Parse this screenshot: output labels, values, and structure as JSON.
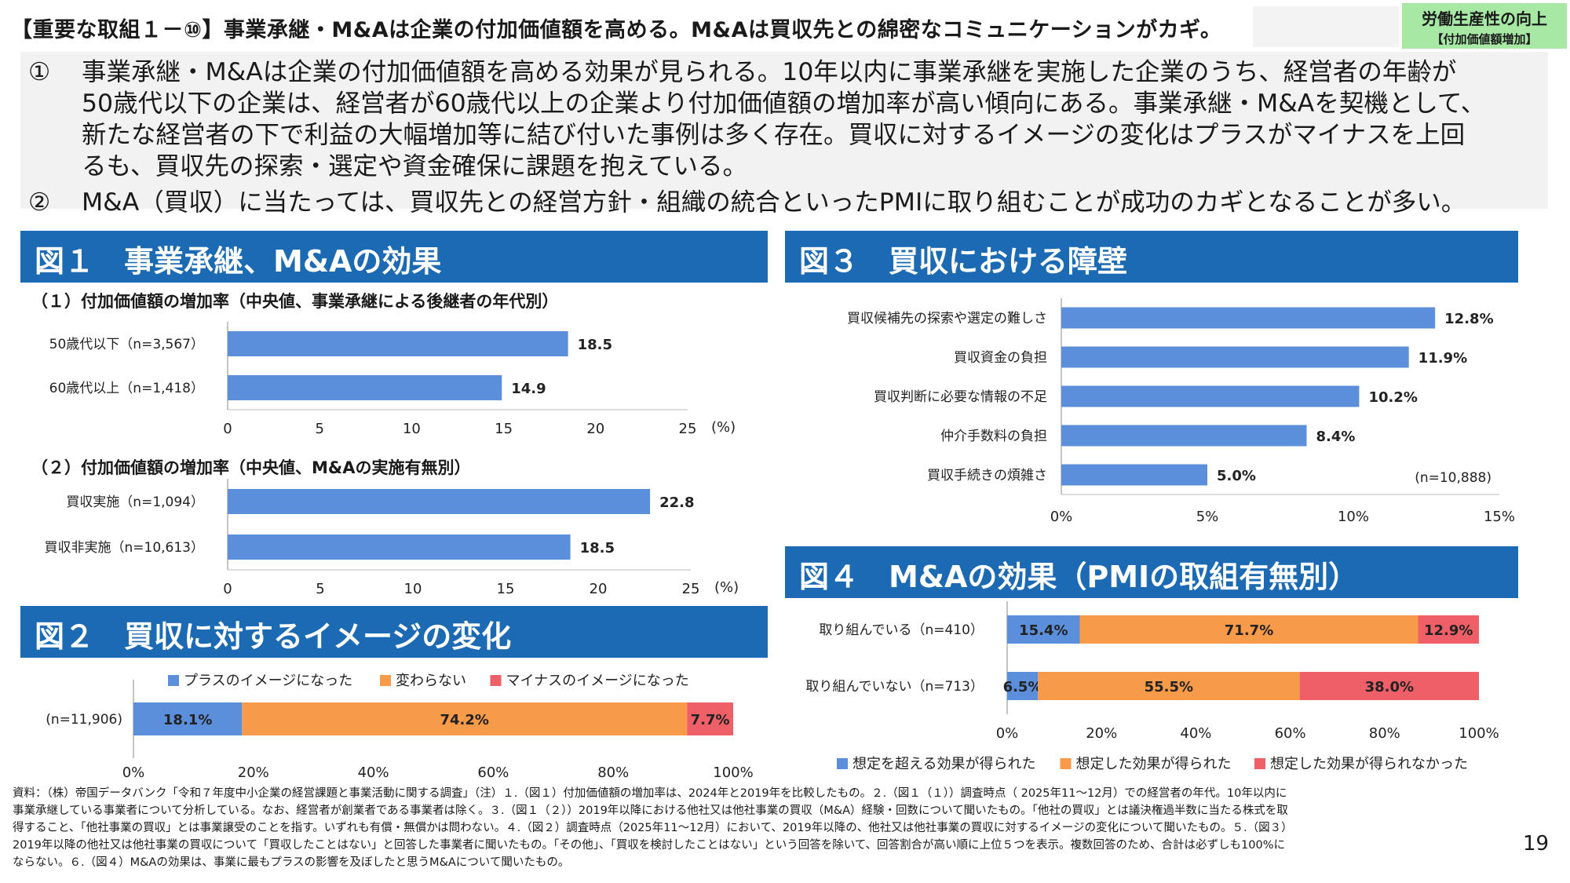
{
  "header": {
    "title": "【重要な取組１－⑩】事業承継・M&Aは企業の付加価値額を高める。M&Aは買収先との綿密なコミュニケーションがカギ。",
    "badge_line1": "労働生産性の向上",
    "badge_line2": "【付加価値額増加】"
  },
  "summary": {
    "item1_num": "①",
    "item1_lines": [
      "事業承継・M&Aは企業の付加価値額を高める効果が見られる。10年以内に事業承継を実施した企業のうち、経営者の年齢が",
      "50歳代以下の企業は、経営者が60歳代以上の企業より付加価値額の増加率が高い傾向にある。事業承継・M&Aを契機として、",
      "新たな経営者の下で利益の大幅増加等に結び付いた事例は多く存在。買収に対するイメージの変化はプラスがマイナスを上回",
      "るも、買収先の探索・選定や資金確保に課題を抱えている。"
    ],
    "item2_num": "②",
    "item2_text": "M&A（買収）に当たっては、買収先との経営方針・組織の統合といったPMIに取り組むことが成功のカギとなることが多い。"
  },
  "figures": {
    "fig1_title": "図１　事業承継、M&Aの効果",
    "fig2_title": "図２　買収に対するイメージの変化",
    "fig3_title": "図３　買収における障壁",
    "fig4_title": "図４　M&Aの効果（PMIの取組有無別）",
    "fig1_sub1": "（１）付加価値額の増加率（中央値、事業承継による後継者の年代別）",
    "fig1_sub2": "（２）付加価値額の増加率（中央値、M&Aの実施有無別）"
  },
  "chart_data": [
    {
      "id": "fig1-1",
      "type": "bar",
      "orientation": "horizontal",
      "categories": [
        "50歳代以下（n=3,567）",
        "60歳代以上（n=1,418）"
      ],
      "values": [
        18.5,
        14.9
      ],
      "value_labels": [
        "18.5",
        "14.9"
      ],
      "xlim": [
        0,
        25
      ],
      "ticks": [
        0,
        5,
        10,
        15,
        20,
        25
      ],
      "unit_label": "(%)",
      "color": "#5b8fdb"
    },
    {
      "id": "fig1-2",
      "type": "bar",
      "orientation": "horizontal",
      "categories": [
        "買収実施（n=1,094）",
        "買収非実施（n=10,613）"
      ],
      "values": [
        22.8,
        18.5
      ],
      "value_labels": [
        "22.8",
        "18.5"
      ],
      "xlim": [
        0,
        25
      ],
      "ticks": [
        0,
        5,
        10,
        15,
        20,
        25
      ],
      "unit_label": "(%)",
      "color": "#5b8fdb"
    },
    {
      "id": "fig2",
      "type": "bar",
      "orientation": "horizontal",
      "stacked": true,
      "categories": [
        "(n=11,906)"
      ],
      "series": [
        {
          "name": "プラスのイメージになった",
          "values": [
            18.1
          ],
          "label": "18.1%",
          "color": "#5b8fdb"
        },
        {
          "name": "変わらない",
          "values": [
            74.2
          ],
          "label": "74.2%",
          "color": "#f79a4a"
        },
        {
          "name": "マイナスのイメージになった",
          "values": [
            7.7
          ],
          "label": "7.7%",
          "color": "#ef5f67"
        }
      ],
      "xlim": [
        0,
        100
      ],
      "tick_labels": [
        "0%",
        "20%",
        "40%",
        "60%",
        "80%",
        "100%"
      ],
      "legend": "top"
    },
    {
      "id": "fig3",
      "type": "bar",
      "orientation": "horizontal",
      "categories": [
        "買収候補先の探索や選定の難しさ",
        "買収資金の負担",
        "買収判断に必要な情報の不足",
        "仲介手数料の負担",
        "買収手続きの煩雑さ"
      ],
      "values": [
        12.8,
        11.9,
        10.2,
        8.4,
        5.0
      ],
      "value_labels": [
        "12.8%",
        "11.9%",
        "10.2%",
        "8.4%",
        "5.0%"
      ],
      "xlim": [
        0,
        15
      ],
      "tick_labels": [
        "0%",
        "5%",
        "10%",
        "15%"
      ],
      "annotation": "(n=10,888)",
      "color": "#5b8fdb"
    },
    {
      "id": "fig4",
      "type": "bar",
      "orientation": "horizontal",
      "stacked": true,
      "categories": [
        "取り組んでいる（n=410）",
        "取り組んでいない（n=713）"
      ],
      "series": [
        {
          "name": "想定を超える効果が得られた",
          "values": [
            15.4,
            6.5
          ],
          "labels": [
            "15.4%",
            "6.5%"
          ],
          "color": "#5b8fdb"
        },
        {
          "name": "想定した効果が得られた",
          "values": [
            71.7,
            55.5
          ],
          "labels": [
            "71.7%",
            "55.5%"
          ],
          "color": "#f79a4a"
        },
        {
          "name": "想定した効果が得られなかった",
          "values": [
            12.9,
            38.0
          ],
          "labels": [
            "12.9%",
            "38.0%"
          ],
          "color": "#ef5f67"
        }
      ],
      "xlim": [
        0,
        100
      ],
      "tick_labels": [
        "0%",
        "20%",
        "40%",
        "60%",
        "80%",
        "100%"
      ],
      "legend": "bottom"
    }
  ],
  "footnote": {
    "lines": [
      "資料：（株）帝国データバンク「令和７年度中小企業の経営課題と事業活動に関する調査」（注）１.（図１）付加価値額の増加率は、2024年と2019年を比較したもの。２.（図１（１））調査時点（ 2025年11～12月）での経営者の年代。10年以内に",
      "事業承継している事業者について分析している。なお、経営者が創業者である事業者は除く。３.（図１（２））2019年以降における他社又は他社事業の買収（M&A）経験・回数について聞いたもの。「他社の買収」とは議決権過半数に当たる株式を取",
      "得すること、「他社事業の買収」とは事業譲受のことを指す。いずれも有償・無償かは問わない。４.（図２）調査時点（2025年11～12月）において、2019年以降の、他社又は他社事業の買収に対するイメージの変化について聞いたもの。５.（図３）",
      "2019年以降の他社又は他社事業の買収について「買収したことはない」と回答した事業者に聞いたもの。「その他」、「買収を検討したことはない」という回答を除いて、回答割合が高い順に上位５つを表示。複数回答のため、合計は必ずしも100%に",
      "ならない。６.（図４）M&Aの効果は、事業に最もプラスの影響を及ぼしたと思うM&Aについて聞いたもの。"
    ]
  },
  "page_number": "19"
}
